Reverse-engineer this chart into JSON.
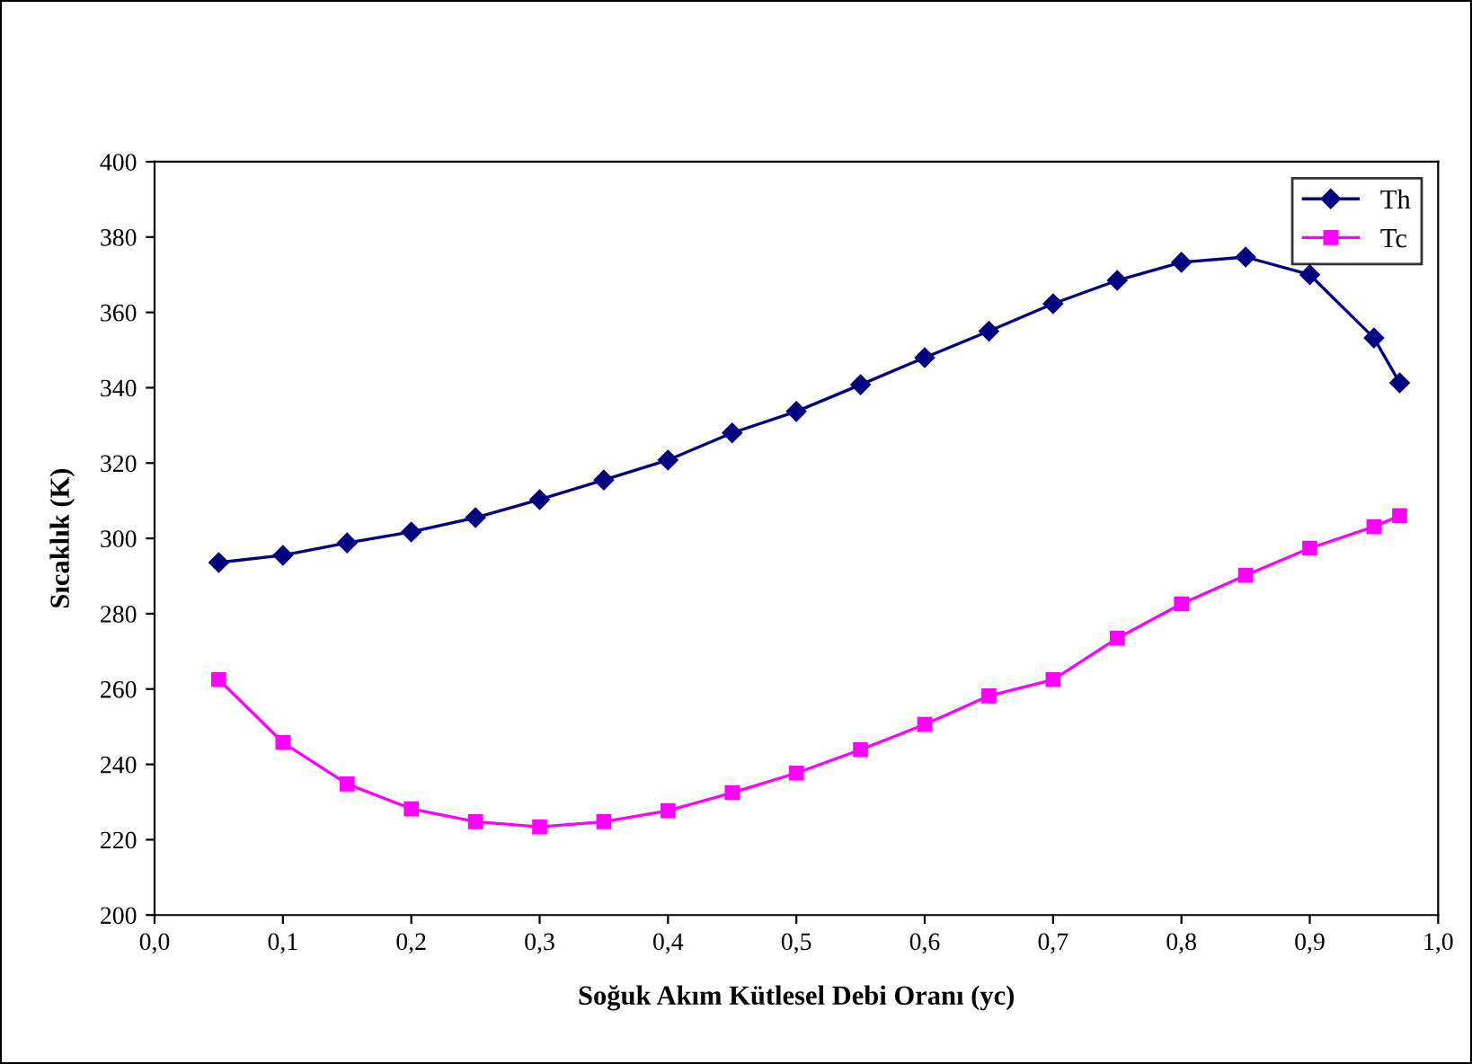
{
  "chart_data": {
    "type": "line",
    "xlabel": "Soğuk Akım Kütlesel Debi Oranı (yc)",
    "ylabel": "Sıcaklık (K)",
    "x": [
      0.05,
      0.1,
      0.15,
      0.2,
      0.25,
      0.3,
      0.35,
      0.4,
      0.45,
      0.5,
      0.55,
      0.6,
      0.65,
      0.7,
      0.75,
      0.8,
      0.85,
      0.9,
      0.95,
      0.97
    ],
    "series": [
      {
        "name": "Th",
        "color": "#000080",
        "marker": "diamond",
        "values": [
          293.6,
          295.5,
          298.8,
          301.7,
          305.5,
          310.3,
          315.5,
          320.8,
          328,
          333.7,
          340.8,
          348,
          355,
          362.3,
          368.5,
          373.3,
          374.7,
          370,
          353.2,
          341.3
        ]
      },
      {
        "name": "Tc",
        "color": "#ff00ff",
        "marker": "square",
        "values": [
          262.5,
          245.8,
          234.8,
          228.2,
          224.8,
          223.4,
          224.8,
          227.7,
          232.5,
          237.7,
          243.9,
          250.6,
          258.2,
          262.5,
          273.5,
          282.6,
          290.2,
          297.4,
          303.1,
          306
        ]
      }
    ],
    "xlim": [
      0,
      1
    ],
    "xticks": [
      {
        "value": 0,
        "label": "0,0"
      },
      {
        "value": 0.1,
        "label": "0,1"
      },
      {
        "value": 0.2,
        "label": "0,2"
      },
      {
        "value": 0.3,
        "label": "0,3"
      },
      {
        "value": 0.4,
        "label": "0,4"
      },
      {
        "value": 0.5,
        "label": "0,5"
      },
      {
        "value": 0.6,
        "label": "0,6"
      },
      {
        "value": 0.7,
        "label": "0,7"
      },
      {
        "value": 0.8,
        "label": "0,8"
      },
      {
        "value": 0.9,
        "label": "0,9"
      },
      {
        "value": 1,
        "label": "1,0"
      }
    ],
    "ylim": [
      200,
      400
    ],
    "yticks": [
      200,
      220,
      240,
      260,
      280,
      300,
      320,
      340,
      360,
      380,
      400
    ],
    "grid": false,
    "legend": "top right",
    "line_style": "solid"
  }
}
